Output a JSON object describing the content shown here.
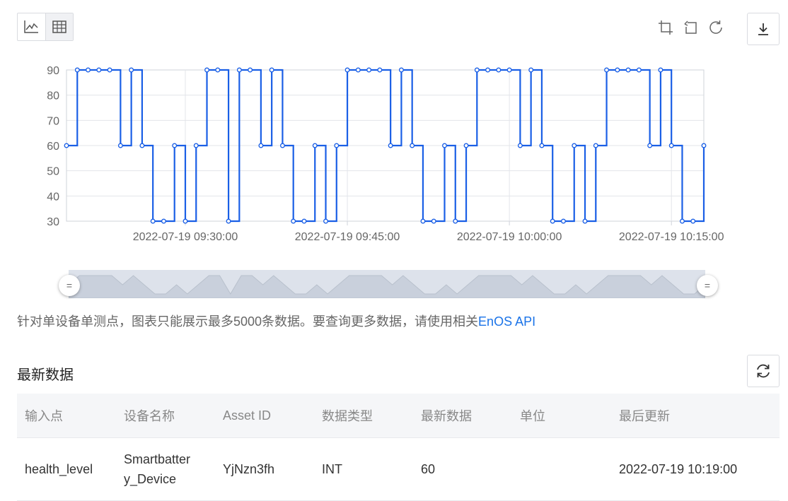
{
  "toolbar": {
    "views": [
      "line-chart-icon",
      "table-icon"
    ],
    "actions": [
      "crop-icon",
      "undo-icon",
      "refresh-icon"
    ],
    "download": "download-icon"
  },
  "chart_data": {
    "type": "line",
    "step": true,
    "series_color": "#1a5fe6",
    "y_ticks": [
      30,
      40,
      50,
      60,
      70,
      80,
      90
    ],
    "ylim": [
      30,
      90
    ],
    "x_tick_labels": [
      "2022-07-19 09:30:00",
      "2022-07-19 09:45:00",
      "2022-07-19 10:00:00",
      "2022-07-19 10:15:00"
    ],
    "x_start": "2022-07-19 09:19:00",
    "x_step_minutes": 1,
    "values": [
      60,
      90,
      90,
      90,
      90,
      60,
      90,
      60,
      30,
      30,
      60,
      30,
      60,
      90,
      90,
      30,
      90,
      90,
      60,
      90,
      60,
      30,
      30,
      60,
      30,
      60,
      90,
      90,
      90,
      90,
      60,
      90,
      60,
      30,
      30,
      60,
      30,
      60,
      90,
      90,
      90,
      90,
      60,
      90,
      60,
      30,
      30,
      60,
      30,
      60,
      90,
      90,
      90,
      90,
      60,
      90,
      60,
      30,
      30,
      60
    ]
  },
  "notice": {
    "text": "针对单设备单测点，图表只能展示最多5000条数据。要查询更多数据，请使用相关",
    "link": "EnOS API"
  },
  "latest": {
    "title": "最新数据",
    "columns": [
      "输入点",
      "设备名称",
      "Asset ID",
      "数据类型",
      "最新数据",
      "单位",
      "最后更新"
    ],
    "rows": [
      {
        "input_point": "health_level",
        "device_name": "Smartbatter\ny_Device",
        "asset_id": "YjNzn3fh",
        "data_type": "INT",
        "latest_value": "60",
        "unit": "",
        "last_update": "2022-07-19 10:19:00"
      }
    ]
  }
}
